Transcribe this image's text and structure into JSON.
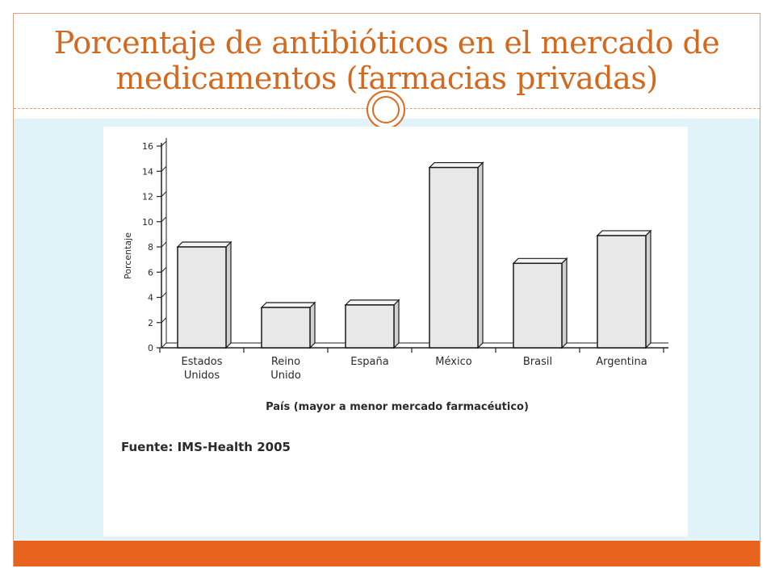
{
  "slide": {
    "title": "Porcentaje de antibióticos en el mercado de medicamentos  (farmacias privadas)"
  },
  "colors": {
    "title": "#d2691e",
    "accent": "#e8641e",
    "content_bg": "#dff3f8",
    "bar_fill": "#e8e8e8",
    "bar_stroke": "#1a1a1a"
  },
  "chart_data": {
    "type": "bar",
    "categories": [
      [
        "Estados",
        "Unidos"
      ],
      [
        "Reino",
        "Unido"
      ],
      [
        "España"
      ],
      [
        "México"
      ],
      [
        "Brasil"
      ],
      [
        "Argentina"
      ]
    ],
    "values": [
      8,
      3.2,
      3.4,
      14.3,
      6.7,
      8.9
    ],
    "ylabel": "Porcentaje",
    "xlabel": "País (mayor a menor mercado farmacéutico)",
    "ylim": [
      0,
      16
    ],
    "yticks": [
      0,
      2,
      4,
      6,
      8,
      10,
      12,
      14,
      16
    ],
    "grid": false,
    "source": "Fuente: IMS-Health 2005"
  }
}
